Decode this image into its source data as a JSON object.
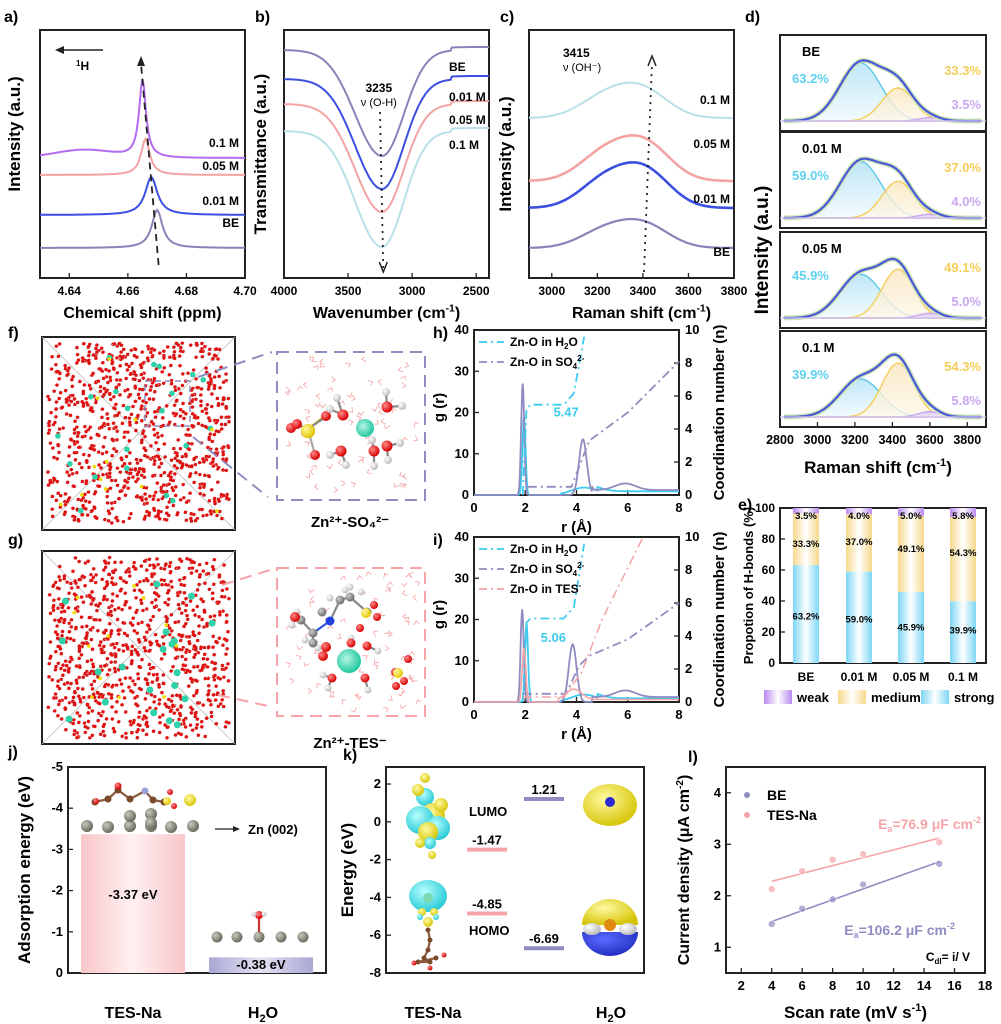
{
  "panel_labels": {
    "a": "a)",
    "b": "b)",
    "c": "c)",
    "d": "d)",
    "e": "e)",
    "f": "f)",
    "g": "g)",
    "h": "h)",
    "i": "i)",
    "j": "j)",
    "k": "k)",
    "l": "l)"
  },
  "colors": {
    "BE": "#8a82b8",
    "0.01 M": "#3b4fe0",
    "0.05 M": "#f4a3a3",
    "0.1 M_a": "#b36cf0",
    "0.1 M_bc": "#b9e0e8",
    "strong": "#7dd6f5",
    "medium": "#f7d98c",
    "weak": "#c9a8ef",
    "fit": "#4a58d8",
    "tes": "#f5a5a8",
    "h2o_level": "#8e8cc0"
  },
  "chart_data": [
    {
      "id": "a",
      "type": "line",
      "title": "",
      "xlabel": "Chemical shift (ppm)",
      "ylabel": "Intensity (a.u.)",
      "xlim": [
        4.63,
        4.7
      ],
      "x_reversed": false,
      "xticks": [
        "4.64",
        "4.66",
        "4.68",
        "4.70"
      ],
      "annotation": "1H",
      "arrow": "left",
      "series": [
        {
          "name": "BE",
          "peak_ppm": 4.67,
          "offset": 0
        },
        {
          "name": "0.01 M",
          "peak_ppm": 4.668,
          "offset": 1
        },
        {
          "name": "0.05 M",
          "peak_ppm": 4.666,
          "offset": 2
        },
        {
          "name": "0.1 M",
          "peak_ppm": 4.665,
          "offset": 3
        }
      ]
    },
    {
      "id": "b",
      "type": "line",
      "xlabel": "Wavenumber (cm-1)",
      "ylabel": "Transmittance (a.u.)",
      "xlim": [
        4000,
        2400
      ],
      "x_reversed": true,
      "xticks": [
        "4000",
        "3500",
        "3000",
        "2500"
      ],
      "annotation_value": "3235",
      "annotation_label": "ν (O-H)",
      "series": [
        {
          "name": "BE",
          "min_at": 3235,
          "offset": 3
        },
        {
          "name": "0.01 M",
          "min_at": 3235,
          "offset": 2
        },
        {
          "name": "0.05 M",
          "min_at": 3230,
          "offset": 1
        },
        {
          "name": "0.1 M",
          "min_at": 3225,
          "offset": 0
        }
      ]
    },
    {
      "id": "c",
      "type": "line",
      "xlabel": "Raman shift (cm-1)",
      "ylabel": "Intensity (a.u.)",
      "xlim": [
        2900,
        3800
      ],
      "xticks": [
        "3000",
        "3200",
        "3400",
        "3600",
        "3800"
      ],
      "annotation_value": "3415",
      "annotation_label": "ν (OH⁻)",
      "series": [
        {
          "name": "BE",
          "peak": 3405,
          "offset": 0
        },
        {
          "name": "0.01 M",
          "peak": 3410,
          "offset": 1
        },
        {
          "name": "0.05 M",
          "peak": 3410,
          "offset": 2
        },
        {
          "name": "0.1 M",
          "peak": 3400,
          "offset": 3
        }
      ]
    },
    {
      "id": "d",
      "type": "area",
      "xlabel": "Raman shift (cm-1)",
      "ylabel": "Intensity (a.u.)",
      "xlim": [
        2800,
        3900
      ],
      "xticks": [
        "2800",
        "3000",
        "3200",
        "3400",
        "3600",
        "3800"
      ],
      "subplots": [
        {
          "name": "BE",
          "strong": 63.2,
          "medium": 33.3,
          "weak": 3.5
        },
        {
          "name": "0.01 M",
          "strong": 59.0,
          "medium": 37.0,
          "weak": 4.0
        },
        {
          "name": "0.05 M",
          "strong": 45.9,
          "medium": 49.1,
          "weak": 5.0
        },
        {
          "name": "0.1 M",
          "strong": 39.9,
          "medium": 54.3,
          "weak": 5.8
        }
      ],
      "component_centers": {
        "strong": 3230,
        "medium": 3430,
        "weak": 3600
      }
    },
    {
      "id": "e",
      "type": "bar",
      "stacked": true,
      "ylabel": "Propotion of H-bonds (%)",
      "ylim": [
        0,
        100
      ],
      "yticks": [
        "0",
        "20",
        "40",
        "60",
        "80",
        "100"
      ],
      "categories": [
        "BE",
        "0.01 M",
        "0.05 M",
        "0.1 M"
      ],
      "series": [
        {
          "name": "strong",
          "values": [
            63.2,
            59.0,
            45.9,
            39.9
          ],
          "labels": [
            "63.2%",
            "59.0%",
            "45.9%",
            "39.9%"
          ]
        },
        {
          "name": "medium",
          "values": [
            33.3,
            37.0,
            49.1,
            54.3
          ],
          "labels": [
            "33.3%",
            "37.0%",
            "49.1%",
            "54.3%"
          ]
        },
        {
          "name": "weak",
          "values": [
            3.5,
            4.0,
            5.0,
            5.8
          ],
          "labels": [
            "3.5%",
            "4.0%",
            "5.0%",
            "5.8%"
          ]
        }
      ],
      "legend": [
        "weak",
        "medium",
        "strong"
      ],
      "legend_position": "bottom"
    },
    {
      "id": "h",
      "type": "line",
      "xlabel": "r (Å)",
      "ylabel": "g (r)",
      "y2label": "Coordination number (n)",
      "xlim": [
        0,
        8
      ],
      "ylim": [
        0,
        40
      ],
      "y2lim": [
        0,
        10
      ],
      "xticks": [
        "0",
        "2",
        "4",
        "6",
        "8"
      ],
      "yticks": [
        "0",
        "10",
        "20",
        "30",
        "40"
      ],
      "y2ticks": [
        "0",
        "2",
        "4",
        "6",
        "8",
        "10"
      ],
      "legend": [
        "Zn-O in H2O",
        "Zn-O in SO42-"
      ],
      "annotation": "5.47",
      "series": [
        {
          "name": "Zn-O in H2O",
          "rdf_peak_r": 1.95,
          "rdf_peak_g": 19,
          "cn_plateau": 5.47
        },
        {
          "name": "Zn-O in SO42-",
          "rdf_peak_r": 1.9,
          "rdf_peak_g": 27,
          "second_peak_r": 4.25,
          "second_peak_g": 13.5,
          "cn_at_8": 8.1
        }
      ]
    },
    {
      "id": "i",
      "type": "line",
      "xlabel": "r (Å)",
      "ylabel": "g (r)",
      "y2label": "Coordination number (n)",
      "xlim": [
        0,
        8
      ],
      "ylim": [
        0,
        40
      ],
      "y2lim": [
        0,
        10
      ],
      "xticks": [
        "0",
        "2",
        "4",
        "6",
        "8"
      ],
      "yticks": [
        "0",
        "10",
        "20",
        "30",
        "40"
      ],
      "y2ticks": [
        "0",
        "2",
        "4",
        "6",
        "8",
        "10"
      ],
      "legend": [
        "Zn-O in H2O",
        "Zn-O in SO42-",
        "Zn-O in TES-"
      ],
      "annotation": "5.06",
      "series": [
        {
          "name": "Zn-O in H2O",
          "rdf_peak_r": 2.05,
          "rdf_peak_g": 19,
          "cn_plateau": 5.06
        },
        {
          "name": "Zn-O in SO42-",
          "rdf_peak_r": 1.88,
          "rdf_peak_g": 22.5,
          "second_peak_r": 3.85,
          "second_peak_g": 14,
          "cn_at_8": 6.0
        },
        {
          "name": "Zn-O in TES-",
          "rdf_peak_r": 1.95,
          "rdf_peak_g": 13,
          "cn_at_6.6": 10
        }
      ]
    },
    {
      "id": "j",
      "type": "bar",
      "ylabel": "Adsorption energy (eV)",
      "ylim": [
        0,
        -5
      ],
      "yticks": [
        "0",
        "-1",
        "-2",
        "-3",
        "-4",
        "-5"
      ],
      "categories": [
        "TES-Na",
        "H2O"
      ],
      "values": [
        -3.37,
        -0.38
      ],
      "labels": [
        "-3.37 eV",
        "-0.38 eV"
      ],
      "annotation": "Zn (002)"
    },
    {
      "id": "k",
      "type": "scatter",
      "ylabel": "Energy (eV)",
      "ylim": [
        -8,
        3
      ],
      "yticks": [
        "-8",
        "-6",
        "-4",
        "-2",
        "0",
        "2"
      ],
      "categories": [
        "TES-Na",
        "H2O"
      ],
      "levels": [
        {
          "molecule": "TES-Na",
          "orbital": "LUMO",
          "value": -1.47,
          "label": "-1.47"
        },
        {
          "molecule": "TES-Na",
          "orbital": "HOMO",
          "value": -4.85,
          "label": "-4.85"
        },
        {
          "molecule": "H2O",
          "orbital": "LUMO",
          "value": 1.21,
          "label": "1.21"
        },
        {
          "molecule": "H2O",
          "orbital": "HOMO",
          "value": -6.69,
          "label": "-6.69"
        }
      ],
      "orbital_labels": [
        "LUMO",
        "HOMO"
      ]
    },
    {
      "id": "l",
      "type": "scatter",
      "xlabel": "Scan rate (mV s-1)",
      "ylabel": "Current density (μA cm-2)",
      "xlim": [
        1,
        18
      ],
      "ylim": [
        0.5,
        4.5
      ],
      "xticks": [
        "2",
        "4",
        "6",
        "8",
        "10",
        "12",
        "14",
        "16",
        "18"
      ],
      "yticks": [
        "1",
        "2",
        "3",
        "4"
      ],
      "series": [
        {
          "name": "BE",
          "x": [
            4,
            6,
            8,
            10,
            15
          ],
          "y": [
            1.45,
            1.75,
            1.93,
            2.22,
            2.62
          ],
          "fit": [
            [
              4,
              1.5
            ],
            [
              15,
              2.66
            ]
          ],
          "label": "Ea=106.2 μF cm-2"
        },
        {
          "name": "TES-Na",
          "x": [
            4,
            6,
            8,
            10,
            15
          ],
          "y": [
            2.13,
            2.48,
            2.7,
            2.81,
            3.04
          ],
          "fit": [
            [
              4,
              2.28
            ],
            [
              15,
              3.12
            ]
          ],
          "label": "Ea=76.9 μF cm-2"
        }
      ],
      "annotation": "Cdl= i/ V",
      "legend_position": "top-left"
    }
  ],
  "md": {
    "f_caption": "Zn²⁺-SO₄²⁻",
    "g_caption": "Zn²⁺-TES⁻"
  }
}
